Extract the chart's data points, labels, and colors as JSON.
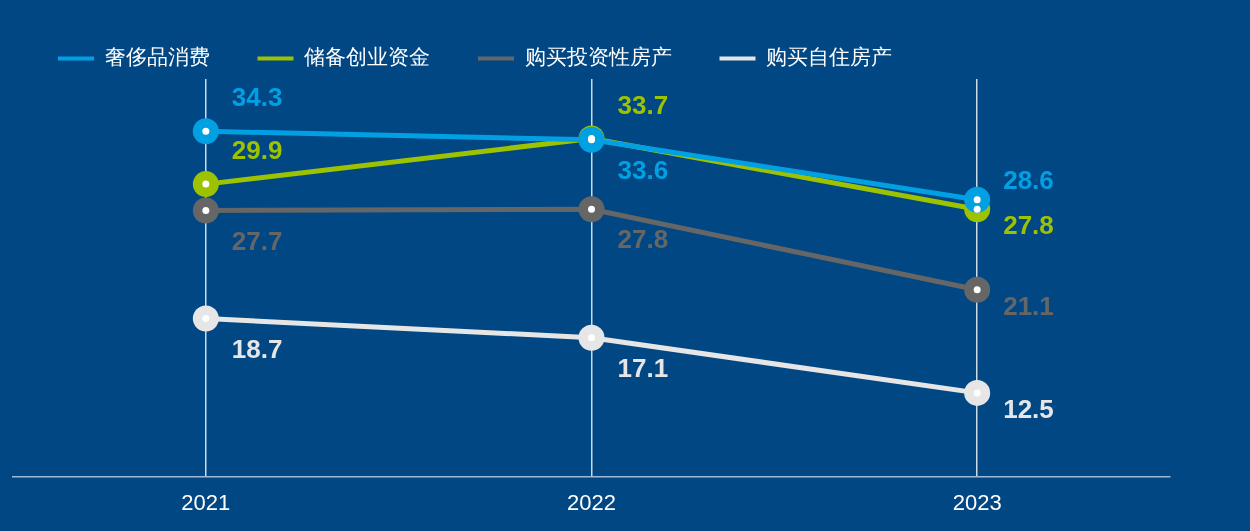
{
  "chart_data": {
    "type": "line",
    "categories": [
      "2021",
      "2022",
      "2023"
    ],
    "series": [
      {
        "name": "奢侈品消费",
        "color": "#00a0e3",
        "values": [
          34.3,
          33.6,
          28.6
        ]
      },
      {
        "name": "储备创业资金",
        "color": "#9cc200",
        "values": [
          29.9,
          33.7,
          27.8
        ]
      },
      {
        "name": "购买投资性房产",
        "color": "#666666",
        "values": [
          27.7,
          27.8,
          21.1
        ]
      },
      {
        "name": "购买自住房产",
        "color": "#e6e6e6",
        "values": [
          18.7,
          17.1,
          12.5
        ]
      }
    ],
    "data_labels": true,
    "legend": "top left",
    "grid": "x",
    "marker": "circle",
    "line_style": "solid"
  }
}
